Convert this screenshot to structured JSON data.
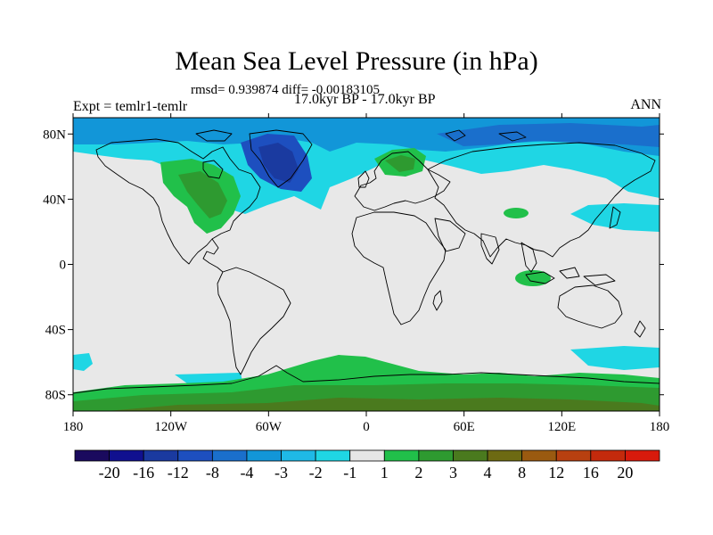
{
  "title": "Mean Sea Level Pressure (in hPa)",
  "stats_line": "rmsd= 0.939874 diff= -0.00183105",
  "period_line": "17.0kyr BP - 17.0kyr BP",
  "experiment_line": "Expt = temlr1-temlr",
  "season_label": "ANN",
  "map": {
    "projection": "cylindrical equidistant",
    "lon_range": [
      -180,
      180
    ],
    "lat_range": [
      -90,
      90
    ],
    "x_ticks": [
      {
        "lon": -180,
        "label": "180"
      },
      {
        "lon": -120,
        "label": "120W"
      },
      {
        "lon": -60,
        "label": "60W"
      },
      {
        "lon": 0,
        "label": "0"
      },
      {
        "lon": 60,
        "label": "60E"
      },
      {
        "lon": 120,
        "label": "120E"
      },
      {
        "lon": 180,
        "label": "180"
      }
    ],
    "y_ticks": [
      {
        "lat": 80,
        "label": "80N"
      },
      {
        "lat": 40,
        "label": "40N"
      },
      {
        "lat": 0,
        "label": "0"
      },
      {
        "lat": -40,
        "label": "40S"
      },
      {
        "lat": -80,
        "label": "80S"
      }
    ],
    "background_color": "#e8e8e8"
  },
  "colorbar": {
    "levels": [
      "-20",
      "-16",
      "-12",
      "-8",
      "-4",
      "-3",
      "-2",
      "-1",
      "1",
      "2",
      "3",
      "4",
      "8",
      "12",
      "16",
      "20"
    ],
    "colors": [
      "#1a0a5e",
      "#10108f",
      "#1a3aa0",
      "#1d4fbf",
      "#1a6fcc",
      "#1296d8",
      "#1fb9e6",
      "#1fd6e4",
      "#e6e6e6",
      "#21c04a",
      "#2e9a30",
      "#4a7a1e",
      "#6d6a12",
      "#9a5a10",
      "#b84010",
      "#c42a0c",
      "#d81a0c"
    ]
  }
}
